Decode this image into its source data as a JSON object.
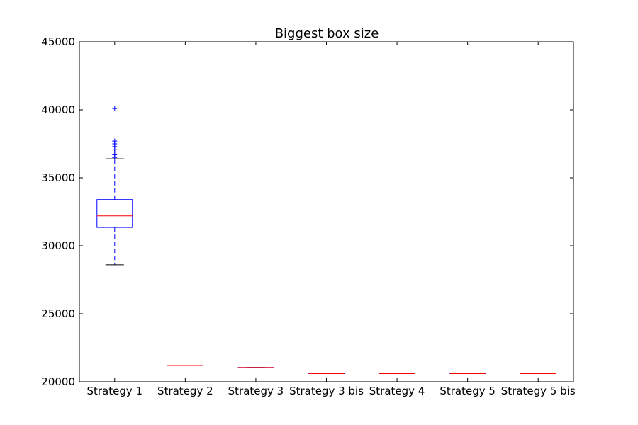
{
  "chart_data": {
    "type": "box",
    "title": "Biggest box size",
    "xlabel": "",
    "ylabel": "",
    "ylim": [
      20000,
      45000
    ],
    "y_ticks": [
      20000,
      25000,
      30000,
      35000,
      40000,
      45000
    ],
    "y_tick_labels": [
      "20000",
      "25000",
      "30000",
      "35000",
      "40000",
      "45000"
    ],
    "grid": false,
    "colors": {
      "box": "#0000ff",
      "median": "#ff0000",
      "whisker_cap": "#000000",
      "flier": "#0000ff",
      "axes": "#000000"
    },
    "categories": [
      "Strategy 1",
      "Strategy 2",
      "Strategy 3",
      "Strategy 3 bis",
      "Strategy 4",
      "Strategy 5",
      "Strategy 5 bis"
    ],
    "boxes": [
      {
        "category": "Strategy 1",
        "whisker_low": 28600,
        "q1": 31350,
        "median": 32200,
        "q3": 33400,
        "whisker_high": 36400,
        "fliers": [
          36500,
          36700,
          36900,
          37100,
          37300,
          37500,
          37700,
          40100
        ]
      },
      {
        "category": "Strategy 2",
        "whisker_low": 21200,
        "q1": 21200,
        "median": 21200,
        "q3": 21200,
        "whisker_high": 21200,
        "fliers": []
      },
      {
        "category": "Strategy 3",
        "whisker_low": 21050,
        "q1": 21050,
        "median": 21050,
        "q3": 21050,
        "whisker_high": 21050,
        "fliers": []
      },
      {
        "category": "Strategy 3 bis",
        "whisker_low": 20600,
        "q1": 20600,
        "median": 20600,
        "q3": 20600,
        "whisker_high": 20600,
        "fliers": []
      },
      {
        "category": "Strategy 4",
        "whisker_low": 20600,
        "q1": 20600,
        "median": 20600,
        "q3": 20600,
        "whisker_high": 20600,
        "fliers": []
      },
      {
        "category": "Strategy 5",
        "whisker_low": 20600,
        "q1": 20600,
        "median": 20600,
        "q3": 20600,
        "whisker_high": 20600,
        "fliers": []
      },
      {
        "category": "Strategy 5 bis",
        "whisker_low": 20600,
        "q1": 20600,
        "median": 20600,
        "q3": 20600,
        "whisker_high": 20600,
        "fliers": []
      }
    ]
  }
}
